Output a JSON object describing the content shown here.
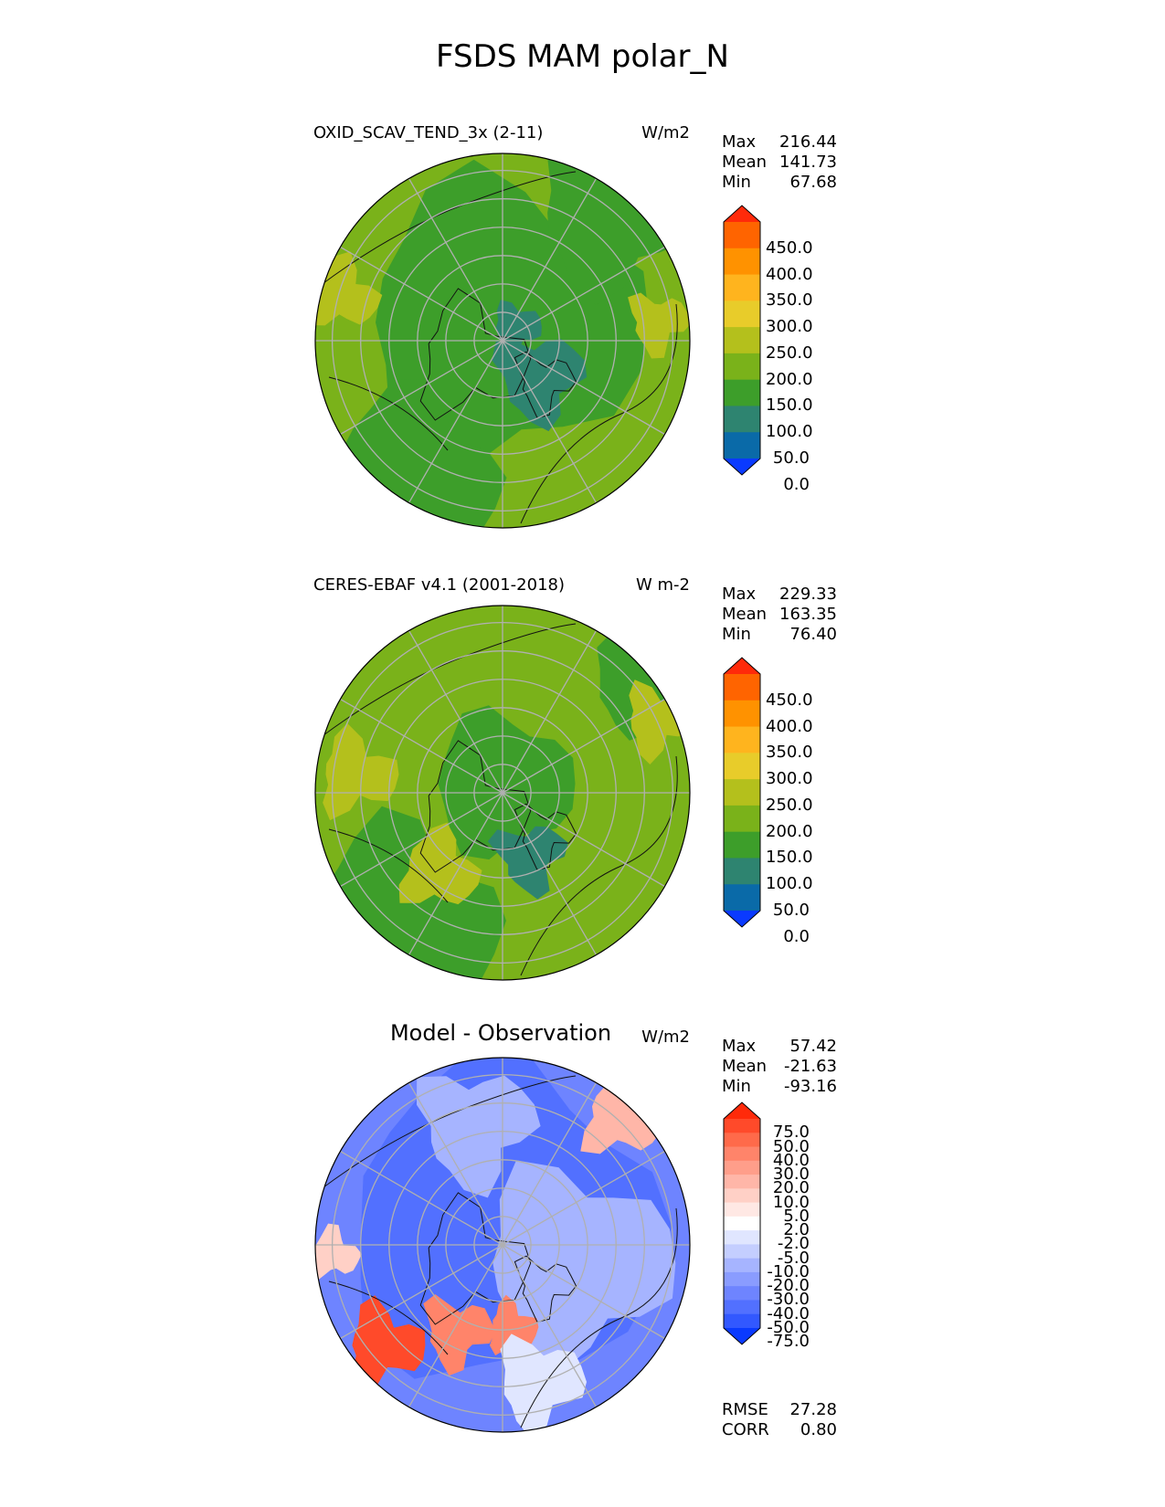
{
  "title": "FSDS MAM polar_N",
  "panels": [
    {
      "id": "model",
      "title": "OXID_SCAV_TEND_3x (2-11)",
      "units": "W/m2",
      "stats": {
        "max_label": "Max",
        "max": "216.44",
        "mean_label": "Mean",
        "mean": "141.73",
        "min_label": "Min",
        "min": "67.68"
      },
      "colorbar": {
        "labels": [
          "450.0",
          "400.0",
          "350.0",
          "300.0",
          "250.0",
          "200.0",
          "150.0",
          "100.0",
          "50.0",
          "0.0"
        ],
        "colors": [
          "#ff2a0a",
          "#ff6400",
          "#ff9200",
          "#ffb41e",
          "#e8cc2a",
          "#b4c01c",
          "#7ab21a",
          "#3d9e2a",
          "#2e8470",
          "#0a6aa8",
          "#0a3aff"
        ]
      }
    },
    {
      "id": "obs",
      "title": "CERES-EBAF v4.1 (2001-2018)",
      "units": "W m-2",
      "stats": {
        "max_label": "Max",
        "max": "229.33",
        "mean_label": "Mean",
        "mean": "163.35",
        "min_label": "Min",
        "min": "76.40"
      },
      "colorbar": {
        "labels": [
          "450.0",
          "400.0",
          "350.0",
          "300.0",
          "250.0",
          "200.0",
          "150.0",
          "100.0",
          "50.0",
          "0.0"
        ],
        "colors": [
          "#ff2a0a",
          "#ff6400",
          "#ff9200",
          "#ffb41e",
          "#e8cc2a",
          "#b4c01c",
          "#7ab21a",
          "#3d9e2a",
          "#2e8470",
          "#0a6aa8",
          "#0a3aff"
        ]
      }
    },
    {
      "id": "diff",
      "title": "Model - Observation",
      "units": "W/m2",
      "stats": {
        "max_label": "Max",
        "max": "57.42",
        "mean_label": "Mean",
        "mean": "-21.63",
        "min_label": "Min",
        "min": "-93.16"
      },
      "colorbar": {
        "labels": [
          "75.0",
          "50.0",
          "40.0",
          "30.0",
          "20.0",
          "10.0",
          "5.0",
          "2.0",
          "-2.0",
          "-5.0",
          "-10.0",
          "-20.0",
          "-30.0",
          "-40.0",
          "-50.0",
          "-75.0"
        ],
        "colors": [
          "#ff2a0a",
          "#ff4a2a",
          "#ff6a4a",
          "#ff846a",
          "#ff9e8a",
          "#ffb6a8",
          "#ffd0c6",
          "#ffe8e4",
          "#ffffff",
          "#e0e6ff",
          "#c4ceff",
          "#a6b4ff",
          "#8a9cff",
          "#6e84ff",
          "#5270ff",
          "#3258ff",
          "#0a3aff"
        ]
      },
      "extra_stats": {
        "rmse_label": "RMSE",
        "rmse": "27.28",
        "corr_label": "CORR",
        "corr": "0.80"
      }
    }
  ]
}
